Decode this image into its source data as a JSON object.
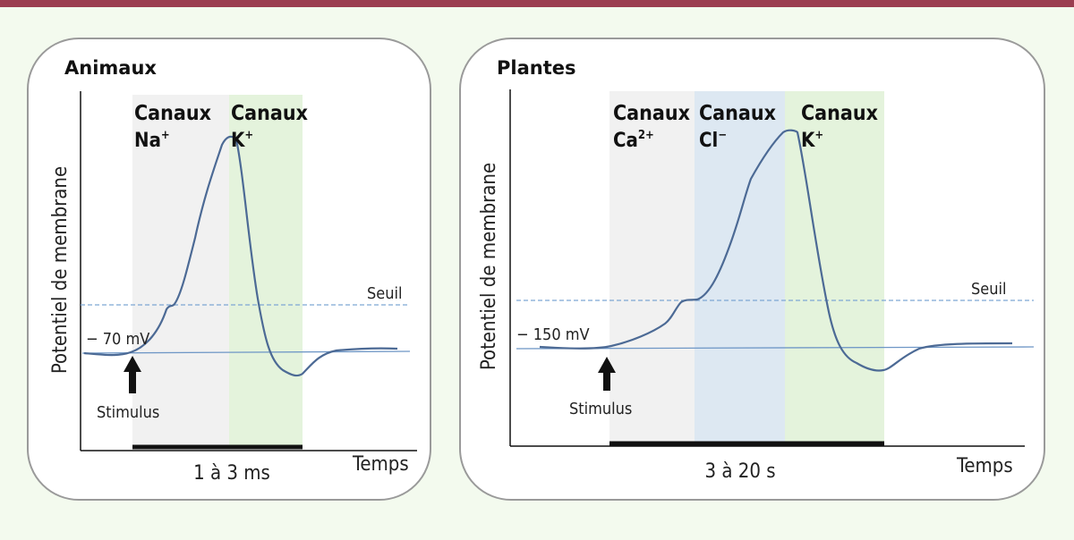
{
  "animals": {
    "title": "Animaux",
    "channels": [
      {
        "word": "Canaux",
        "ion": "Na",
        "sup": "+"
      },
      {
        "word": "Canaux",
        "ion": "K",
        "sup": "+"
      }
    ],
    "resting_label": "− 70 mV",
    "threshold_label": "Seuil",
    "stimulus_label": "Stimulus",
    "y_label": "Potentiel de membrane",
    "x_label": "Temps",
    "duration_label": "1 à 3 ms"
  },
  "plants": {
    "title": "Plantes",
    "channels": [
      {
        "word": "Canaux",
        "ion": "Ca",
        "sup": "2+"
      },
      {
        "word": "Canaux",
        "ion": "Cl",
        "sup": "−"
      },
      {
        "word": "Canaux",
        "ion": "K",
        "sup": "+"
      }
    ],
    "resting_label": "− 150 mV",
    "threshold_label": "Seuil",
    "stimulus_label": "Stimulus",
    "y_label": "Potentiel de membrane",
    "x_label": "Temps",
    "duration_label": "3 à 20 s"
  },
  "colors": {
    "header_bar": "#9b3d50",
    "background": "#f3faee",
    "panel_border": "#9a9a9a",
    "curve": "#4c6a95",
    "threshold": "#7ea6d4",
    "resting": "#6f97c6",
    "band_gray": "#f1f1f1",
    "band_blue": "#dde8f2",
    "band_green": "#e4f3dc"
  }
}
